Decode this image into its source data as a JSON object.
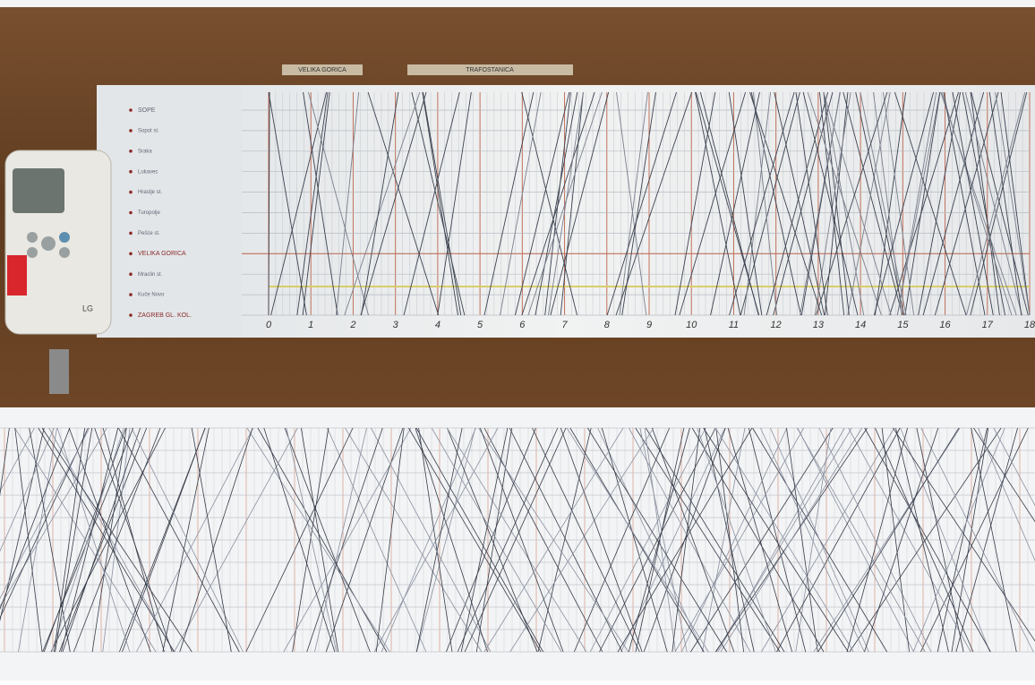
{
  "frame_labels": [
    "VELIKA GORICA",
    "TRAFOSTANICA"
  ],
  "stations": [
    "SOPE",
    "Sopot st.",
    "Sraka",
    "Lukavec",
    "Hrastje st.",
    "Turopolje",
    "Pešće st.",
    "VELIKA GORICA",
    "Mraclin st.",
    "Kuče Novo",
    "ZAGREB GL. KOL."
  ],
  "hours": [
    "0",
    "1",
    "2",
    "3",
    "4",
    "5",
    "6",
    "7",
    "8",
    "9",
    "10",
    "11",
    "12",
    "13",
    "14",
    "15",
    "16",
    "17",
    "18"
  ],
  "remote_brand": "LG"
}
